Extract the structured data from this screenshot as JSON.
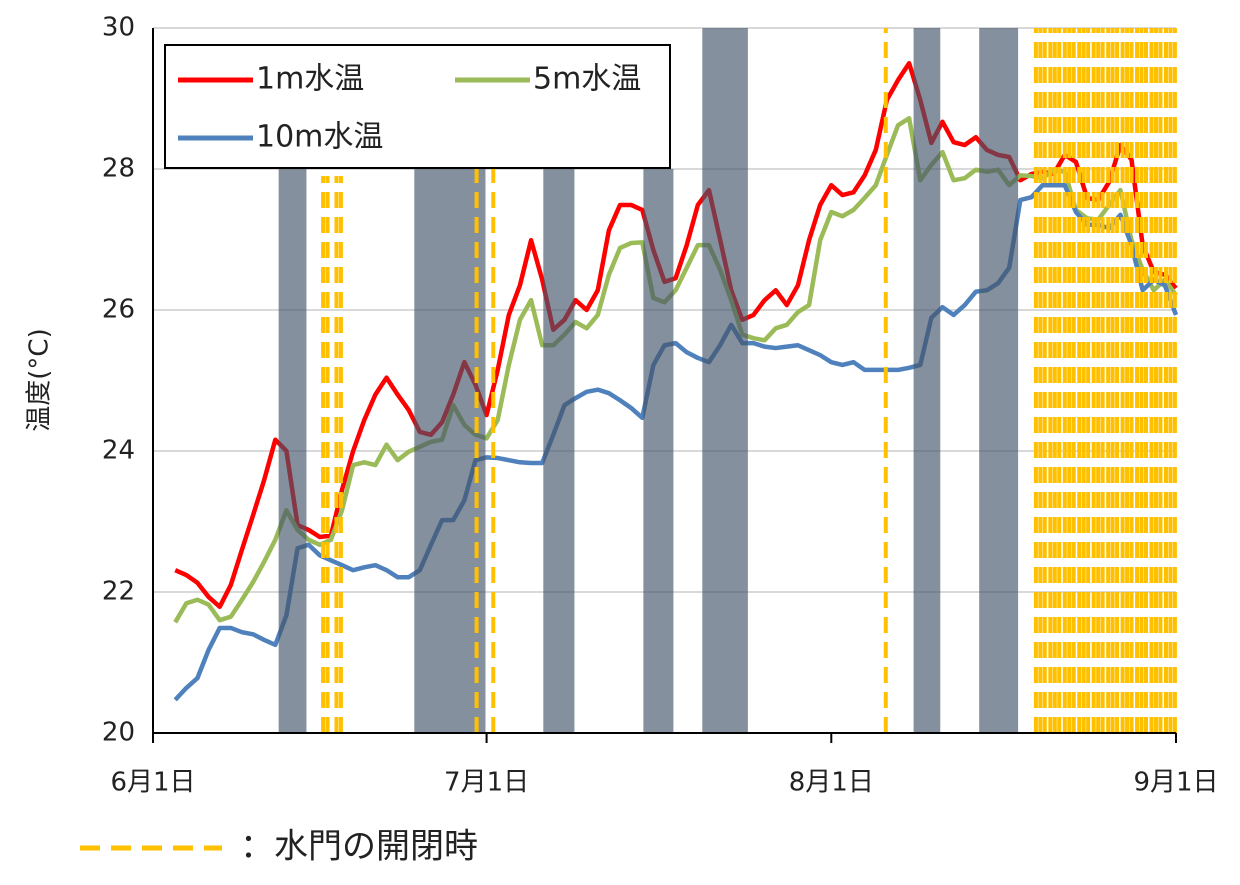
{
  "chart_data": {
    "type": "line",
    "y_label": "温度(°C)",
    "x": [
      2,
      3,
      4,
      5,
      6,
      7,
      8,
      9,
      10,
      11,
      12,
      13,
      14,
      15,
      16,
      17,
      18,
      19,
      20,
      21,
      22,
      23,
      24,
      25,
      26,
      27,
      28,
      29,
      30,
      31,
      32,
      33,
      34,
      35,
      36,
      37,
      38,
      39,
      40,
      41,
      42,
      43,
      44,
      45,
      46,
      47,
      48,
      49,
      50,
      51,
      52,
      53,
      54,
      55,
      56,
      57,
      58,
      59,
      60,
      61,
      62,
      63,
      64,
      65,
      66,
      67,
      68,
      69,
      70,
      71,
      72,
      73,
      74,
      75,
      76,
      77,
      78,
      79,
      80,
      81,
      82,
      83,
      84,
      85,
      86,
      87,
      88,
      89,
      90,
      91,
      92
    ],
    "series": [
      {
        "name": "1m水温",
        "color": "#ff0000",
        "values": [
          22.31,
          22.24,
          22.13,
          21.93,
          21.79,
          22.1,
          22.6,
          23.09,
          23.59,
          24.16,
          24.0,
          22.95,
          22.88,
          22.78,
          22.8,
          23.45,
          24.0,
          24.44,
          24.8,
          25.04,
          24.8,
          24.58,
          24.27,
          24.23,
          24.41,
          24.8,
          25.26,
          24.94,
          24.51,
          25.15,
          25.93,
          26.35,
          26.99,
          26.43,
          25.72,
          25.86,
          26.14,
          26.0,
          26.28,
          27.13,
          27.49,
          27.49,
          27.42,
          26.85,
          26.4,
          26.45,
          26.92,
          27.49,
          27.7,
          27.0,
          26.28,
          25.86,
          25.93,
          26.14,
          26.28,
          26.07,
          26.35,
          26.99,
          27.49,
          27.77,
          27.63,
          27.67,
          27.91,
          28.27,
          28.98,
          29.26,
          29.5,
          28.98,
          28.37,
          28.67,
          28.38,
          28.34,
          28.45,
          28.27,
          28.2,
          28.17,
          27.84,
          27.93,
          27.96,
          27.93,
          28.2,
          28.1,
          27.59,
          27.56,
          27.82,
          28.34,
          28.13,
          26.92,
          26.54,
          26.5,
          26.31
        ]
      },
      {
        "name": "5m水温",
        "color": "#9bbb59",
        "values": [
          21.57,
          21.84,
          21.89,
          21.82,
          21.6,
          21.65,
          21.89,
          22.14,
          22.43,
          22.74,
          23.16,
          22.88,
          22.74,
          22.67,
          22.74,
          23.16,
          23.8,
          23.84,
          23.8,
          24.09,
          23.87,
          23.99,
          24.06,
          24.13,
          24.16,
          24.65,
          24.37,
          24.23,
          24.18,
          24.44,
          25.22,
          25.86,
          26.14,
          25.5,
          25.5,
          25.65,
          25.83,
          25.74,
          25.93,
          26.5,
          26.88,
          26.95,
          26.96,
          26.17,
          26.11,
          26.28,
          26.6,
          26.92,
          26.92,
          26.57,
          26.14,
          25.65,
          25.6,
          25.57,
          25.74,
          25.79,
          25.97,
          26.07,
          26.99,
          27.39,
          27.33,
          27.42,
          27.59,
          27.77,
          28.2,
          28.62,
          28.72,
          27.84,
          28.06,
          28.24,
          27.84,
          27.87,
          27.99,
          27.96,
          27.99,
          27.77,
          27.91,
          27.9,
          27.87,
          27.99,
          27.96,
          27.42,
          27.3,
          27.28,
          27.49,
          27.7,
          26.99,
          26.57,
          26.28,
          26.43,
          26.21
        ]
      },
      {
        "name": "10m水温",
        "color": "#4f81bd",
        "values": [
          20.47,
          20.64,
          20.78,
          21.18,
          21.49,
          21.49,
          21.43,
          21.4,
          21.32,
          21.25,
          21.67,
          22.62,
          22.67,
          22.52,
          22.45,
          22.38,
          22.31,
          22.35,
          22.38,
          22.31,
          22.21,
          22.21,
          22.31,
          22.67,
          23.02,
          23.02,
          23.3,
          23.87,
          23.91,
          23.9,
          23.87,
          23.84,
          23.83,
          23.83,
          24.23,
          24.65,
          24.75,
          24.84,
          24.87,
          24.82,
          24.72,
          24.61,
          24.47,
          25.22,
          25.5,
          25.53,
          25.4,
          25.32,
          25.26,
          25.5,
          25.79,
          25.53,
          25.53,
          25.48,
          25.46,
          25.48,
          25.5,
          25.43,
          25.36,
          25.26,
          25.22,
          25.26,
          25.15,
          25.15,
          25.15,
          25.15,
          25.18,
          25.22,
          25.89,
          26.04,
          25.93,
          26.07,
          26.26,
          26.28,
          26.38,
          26.6,
          27.56,
          27.6,
          27.77,
          27.77,
          27.77,
          27.39,
          27.21,
          27.21,
          27.16,
          27.35,
          26.92,
          26.28,
          26.43,
          26.35,
          25.93
        ]
      }
    ],
    "xlim": [
      0,
      92
    ],
    "xticks": [
      {
        "value": 0,
        "label": "6月1日"
      },
      {
        "value": 30,
        "label": "7月1日"
      },
      {
        "value": 61,
        "label": "8月1日"
      },
      {
        "value": 92,
        "label": "9月1日"
      }
    ],
    "ylim": [
      20,
      30
    ],
    "yticks": [
      20,
      22,
      24,
      26,
      28,
      30
    ],
    "grid": true,
    "shaded_periods": [
      {
        "x": [
          11.3,
          13.8
        ],
        "y": [
          20,
          28
        ]
      },
      {
        "x": [
          23.5,
          29.9
        ],
        "y": [
          20,
          28
        ]
      },
      {
        "x": [
          35.1,
          37.9
        ],
        "y": [
          20,
          28
        ]
      },
      {
        "x": [
          44.1,
          46.8
        ],
        "y": [
          20,
          28
        ]
      },
      {
        "x": [
          49.4,
          53.5
        ],
        "y": [
          20,
          30
        ]
      },
      {
        "x": [
          68.4,
          70.8
        ],
        "y": [
          20,
          30
        ]
      },
      {
        "x": [
          74.3,
          77.8
        ],
        "y": [
          20,
          30
        ]
      }
    ],
    "shaded_color": "#44546a",
    "gate_color": "#ffc000",
    "gate_events": [
      {
        "x": [
          15.3,
          15.7,
          16.5,
          16.9
        ],
        "top": 27.9
      },
      {
        "x": [
          29.1,
          30.6
        ],
        "top": 28
      },
      {
        "x": [
          65.9
        ],
        "top": 30
      },
      {
        "x": [
          79.4,
          79.8,
          80.2,
          80.7,
          81.1,
          81.5,
          82.0,
          82.4,
          82.8,
          83.3,
          83.7,
          84.1,
          84.6,
          85.0,
          85.4,
          85.9,
          86.3,
          86.7,
          87.2,
          87.6,
          88.0,
          88.5,
          88.9,
          89.3,
          89.8,
          90.2,
          90.6,
          91.1,
          91.5,
          91.9
        ],
        "top": 30
      }
    ],
    "gate_legend": "：水門の開閉時"
  }
}
